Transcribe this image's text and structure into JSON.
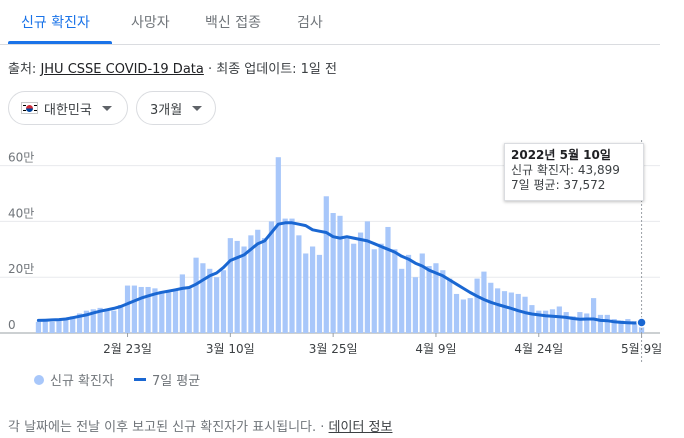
{
  "tabs": [
    {
      "label": "신규 확진자",
      "active": true
    },
    {
      "label": "사망자",
      "active": false
    },
    {
      "label": "백신 접종",
      "active": false
    },
    {
      "label": "검사",
      "active": false
    }
  ],
  "source": {
    "prefix": "출처: ",
    "link": "JHU CSSE COVID-19 Data",
    "suffix": " · 최종 업데이트: 1일 전"
  },
  "filters": {
    "country": "대한민국",
    "period": "3개월"
  },
  "tooltip": {
    "date": "2022년 5월 10일",
    "new_cases": "신규 확진자: 43,899",
    "avg": "7일 평균: 37,572"
  },
  "legend": {
    "bars": "신규 확진자",
    "line": "7일 평균"
  },
  "footer": {
    "text": "각 날짜에는 전날 이후 보고된 신규 확진자가 표시됩니다. · ",
    "link": "데이터 정보"
  },
  "colors": {
    "accent": "#1a73e8",
    "bar": "#a8c7fa",
    "line": "#1a67d2"
  },
  "chart_data": {
    "type": "bar",
    "title": "",
    "xlabel": "",
    "ylabel": "",
    "ylim": [
      0,
      620000
    ],
    "y_ticks": [
      {
        "value": 0,
        "label": "0"
      },
      {
        "value": 200000,
        "label": "20만"
      },
      {
        "value": 400000,
        "label": "40만"
      },
      {
        "value": 600000,
        "label": "60만"
      }
    ],
    "x_ticks": [
      {
        "index": 13,
        "label": "2월 23일"
      },
      {
        "index": 28,
        "label": "3월 10일"
      },
      {
        "index": 43,
        "label": "3월 25일"
      },
      {
        "index": 58,
        "label": "4월 9일"
      },
      {
        "index": 73,
        "label": "4월 24일"
      },
      {
        "index": 88,
        "label": "5월 9일"
      }
    ],
    "series": [
      {
        "name": "신규 확진자",
        "values": [
          40000,
          42000,
          40000,
          45000,
          50000,
          60000,
          70000,
          80000,
          85000,
          90000,
          85000,
          80000,
          100000,
          170000,
          170000,
          165000,
          165000,
          160000,
          150000,
          145000,
          155000,
          210000,
          160000,
          270000,
          250000,
          230000,
          200000,
          225000,
          340000,
          330000,
          310000,
          350000,
          370000,
          340000,
          400000,
          630000,
          410000,
          410000,
          350000,
          285000,
          310000,
          280000,
          490000,
          430000,
          420000,
          340000,
          320000,
          360000,
          400000,
          300000,
          320000,
          380000,
          300000,
          230000,
          280000,
          200000,
          285000,
          240000,
          250000,
          225000,
          195000,
          140000,
          120000,
          125000,
          195000,
          220000,
          180000,
          160000,
          150000,
          145000,
          140000,
          130000,
          100000,
          80000,
          80000,
          85000,
          95000,
          75000,
          60000,
          75000,
          70000,
          125000,
          65000,
          65000,
          50000,
          45000,
          50000,
          42000,
          43899
        ],
        "color": "#a8c7fa"
      },
      {
        "name": "7일 평균",
        "values": [
          45000,
          46000,
          47000,
          48000,
          50000,
          55000,
          60000,
          65000,
          72000,
          78000,
          83000,
          88000,
          95000,
          105000,
          115000,
          125000,
          133000,
          140000,
          146000,
          150000,
          155000,
          160000,
          163000,
          175000,
          190000,
          205000,
          215000,
          235000,
          260000,
          270000,
          280000,
          300000,
          320000,
          330000,
          360000,
          390000,
          395000,
          395000,
          390000,
          385000,
          370000,
          365000,
          360000,
          345000,
          340000,
          345000,
          340000,
          335000,
          330000,
          320000,
          310000,
          300000,
          290000,
          275000,
          265000,
          250000,
          240000,
          225000,
          215000,
          205000,
          190000,
          175000,
          160000,
          145000,
          132000,
          120000,
          110000,
          102000,
          95000,
          88000,
          80000,
          73000,
          68000,
          65000,
          62000,
          60000,
          58000,
          56000,
          52000,
          49000,
          50000,
          50000,
          45000,
          44000,
          40000,
          38000,
          37000,
          36000,
          37572
        ],
        "color": "#1a67d2"
      }
    ]
  }
}
